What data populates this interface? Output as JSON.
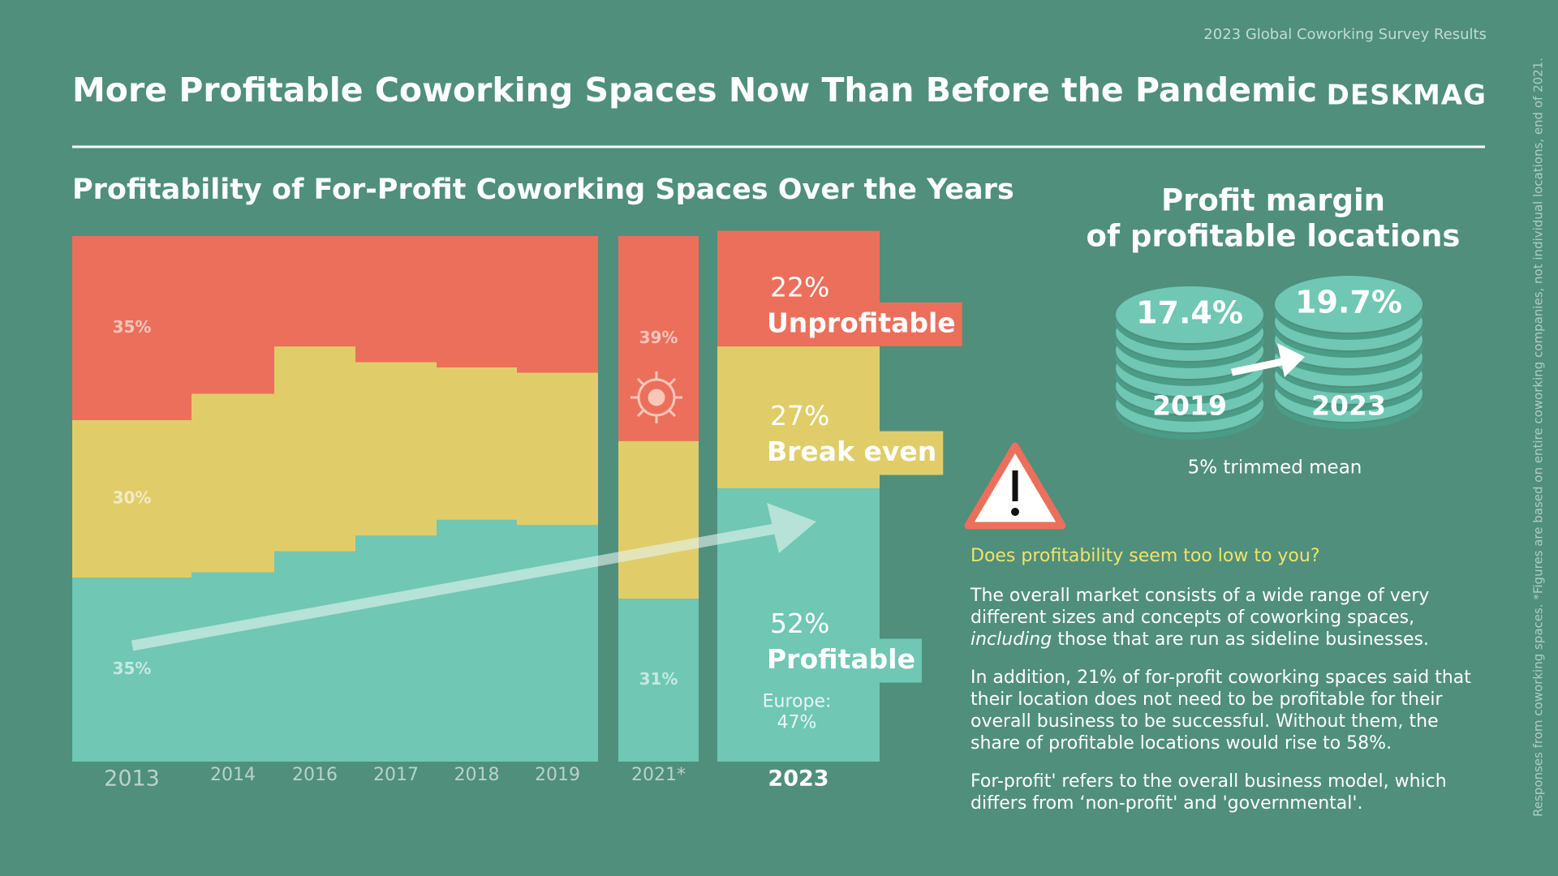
{
  "header": {
    "source": "2023 Global Coworking Survey Results",
    "title": "More Profitable Coworking Spaces Now Than Before the Pandemic",
    "logo": "DESKMAG"
  },
  "chart_data": {
    "type": "bar",
    "stacked": true,
    "title": "Profitability of For-Profit Coworking Spaces Over the Years",
    "categories": [
      "2013",
      "2014",
      "2016",
      "2017",
      "2018",
      "2019",
      "2021*",
      "2023"
    ],
    "series": [
      {
        "name": "Unprofitable",
        "color": "#ec6f5b",
        "values": [
          35,
          30,
          21,
          24,
          25,
          26,
          39,
          22
        ],
        "value_labels": [
          "35%",
          null,
          null,
          null,
          null,
          null,
          "39%",
          "22%"
        ]
      },
      {
        "name": "Break even",
        "color": "#e0cd69",
        "values": [
          30,
          34,
          39,
          33,
          29,
          29,
          30,
          27
        ],
        "value_labels": [
          "30%",
          null,
          null,
          null,
          null,
          null,
          null,
          "27%"
        ]
      },
      {
        "name": "Profitable",
        "color": "#6fc7b4",
        "values": [
          35,
          36,
          40,
          43,
          46,
          45,
          31,
          52
        ],
        "value_labels": [
          "35%",
          null,
          null,
          null,
          null,
          null,
          "31%",
          "52%"
        ]
      }
    ],
    "ylim": [
      0,
      100
    ],
    "annotations": [
      "Europe:",
      "47%"
    ]
  },
  "profit_margin": {
    "title_1": "Profit margin",
    "title_2": "of profitable locations",
    "items": [
      {
        "year": "2019",
        "value": "17.4%"
      },
      {
        "year": "2023",
        "value": "19.7%"
      }
    ],
    "note": "5% trimmed mean"
  },
  "note": {
    "question": "Does profitability seem too low to you?",
    "p1": [
      "The overall market consists of a wide range of very different sizes and concepts of coworking spaces,",
      "including",
      "those that are run as sideline businesses."
    ],
    "p2": "In addition, 21% of for-profit coworking spaces said that their location does not need to be profitable for their overall business to be successful. Without them, the share of profitable locations would rise to 58%.",
    "p3": "For-profit' refers to the overall business model, which differs from ‘non-profit' and 'governmental'."
  },
  "side_note": "Responses from coworking spaces. *Figures are based on entire coworking companies, not individual locations, end of 2021."
}
